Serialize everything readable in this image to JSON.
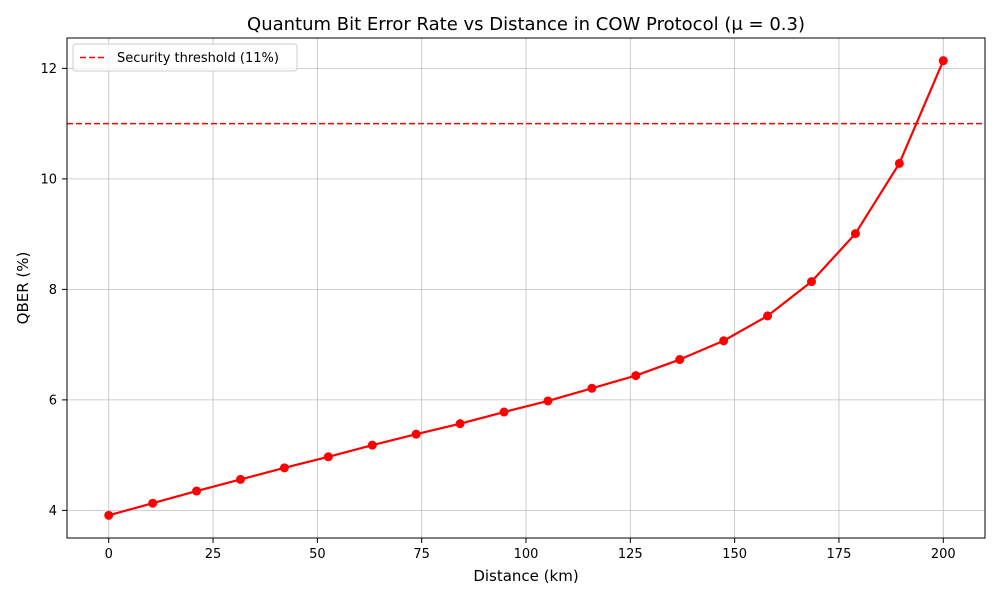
{
  "chart_data": {
    "type": "line",
    "title": "Quantum Bit Error Rate vs Distance in COW Protocol (μ = 0.3)",
    "xlabel": "Distance (km)",
    "ylabel": "QBER (%)",
    "xlim": [
      -10,
      210
    ],
    "ylim": [
      3.5,
      12.55
    ],
    "xticks": [
      0,
      25,
      50,
      75,
      100,
      125,
      150,
      175,
      200
    ],
    "yticks": [
      4,
      6,
      8,
      10,
      12
    ],
    "grid": true,
    "legend_position": "top-left",
    "series": [
      {
        "name": "",
        "color": "#ff0000",
        "marker": "circle",
        "x": [
          0,
          10.53,
          21.05,
          31.58,
          42.11,
          52.63,
          63.16,
          73.68,
          84.21,
          94.74,
          105.26,
          115.79,
          126.32,
          136.84,
          147.37,
          157.89,
          168.42,
          178.95,
          189.47,
          200
        ],
        "y": [
          3.91,
          4.13,
          4.35,
          4.56,
          4.77,
          4.97,
          5.18,
          5.38,
          5.57,
          5.78,
          5.98,
          6.21,
          6.44,
          6.73,
          7.07,
          7.52,
          8.14,
          9.01,
          10.28,
          12.14
        ]
      }
    ],
    "threshold": {
      "name": "Security threshold (11%)",
      "y": 11,
      "color": "#ff0000",
      "style": "dashed"
    }
  }
}
